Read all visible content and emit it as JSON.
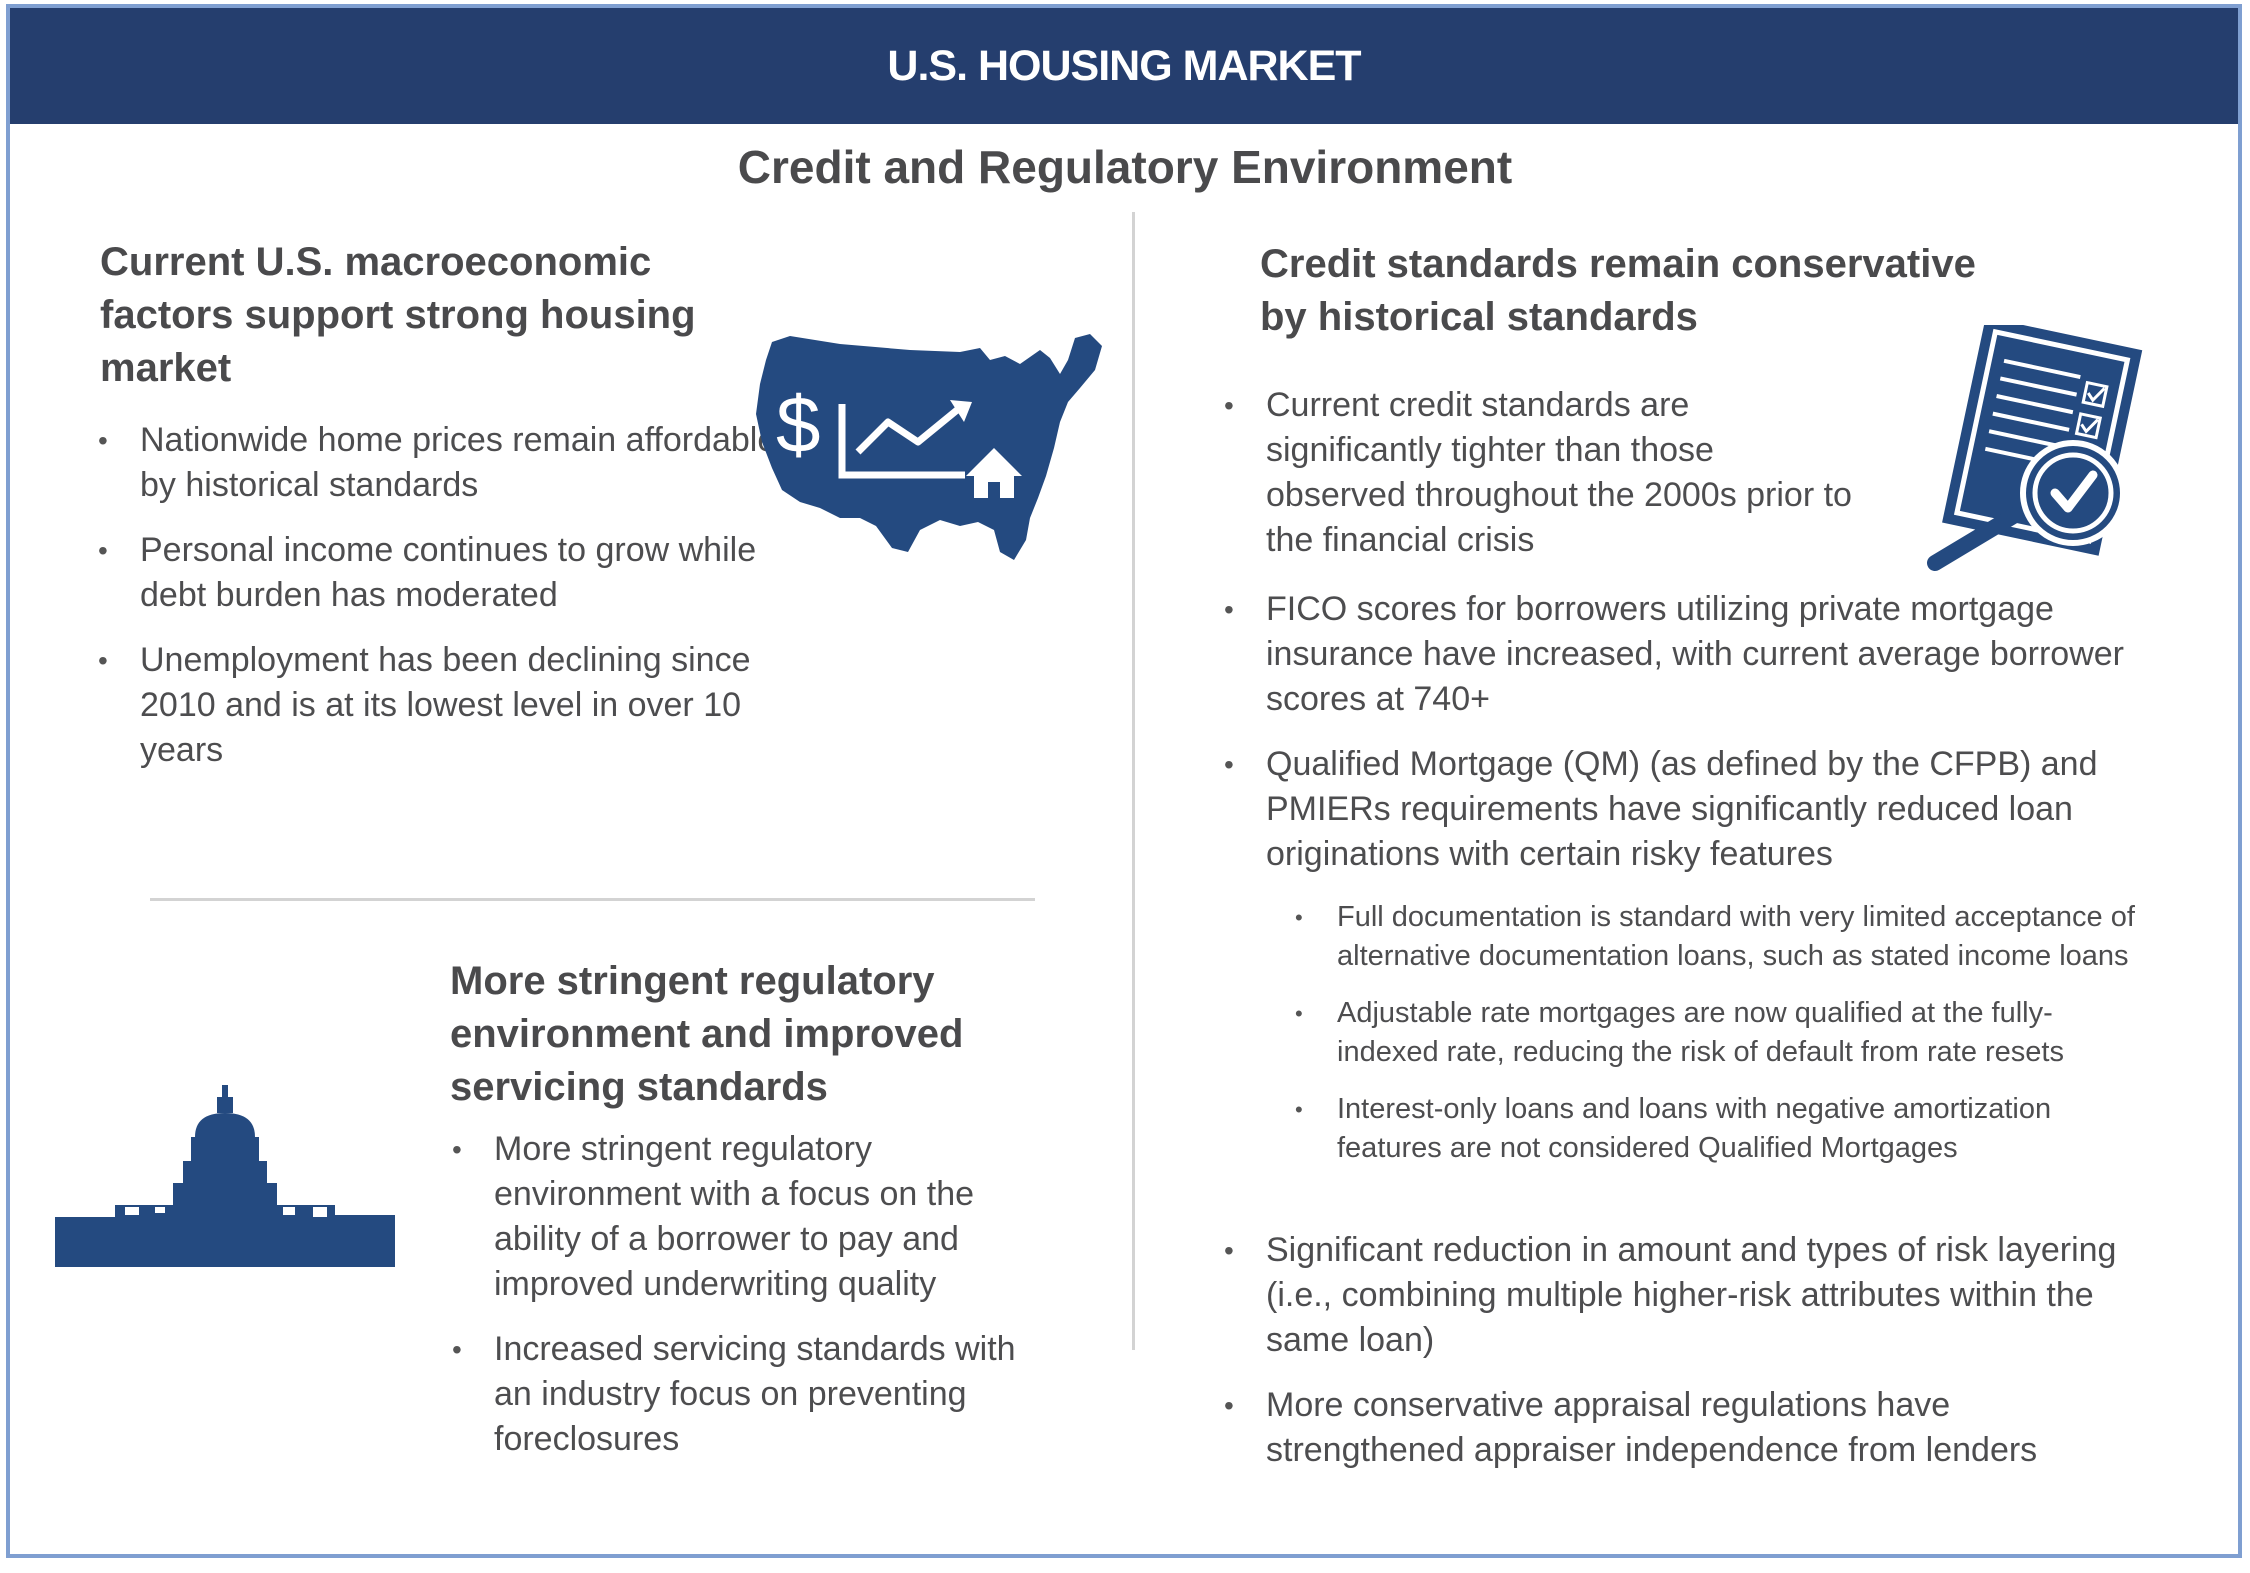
{
  "banner": {
    "title": "U.S. HOUSING MARKET"
  },
  "subtitle": "Credit and Regulatory Environment",
  "left_top": {
    "heading": [
      "Current U.S. macroeconomic",
      "factors support strong housing",
      "market"
    ],
    "bullets": [
      "Nationwide home prices remain affordable by historical standards",
      "Personal income continues to grow while debt burden has moderated",
      "Unemployment has been declining since 2010 and is at its lowest level in over 10 years"
    ],
    "map_icon_symbol": "$"
  },
  "left_bottom": {
    "heading": [
      "More stringent regulatory",
      "environment and improved",
      "servicing standards"
    ],
    "bullets": [
      "More stringent regulatory environment with a focus on the ability of a borrower to pay and improved underwriting quality",
      "Increased servicing standards with an industry focus on preventing foreclosures"
    ]
  },
  "right": {
    "heading": [
      "Credit standards remain conservative",
      "by historical standards"
    ],
    "bullets": [
      "Current credit standards are significantly tighter than those observed throughout the 2000s prior to the financial crisis",
      "FICO scores for borrowers utilizing private mortgage insurance have increased, with current average borrower scores at 740+",
      "Qualified Mortgage (QM) (as defined by the CFPB) and PMIERs requirements have significantly reduced loan originations with certain risky features"
    ],
    "sub_bullets": [
      "Full documentation is standard with very limited acceptance of alternative documentation loans, such as stated income loans",
      "Adjustable rate mortgages are now qualified at the fully-indexed rate, reducing the risk of default from rate resets",
      "Interest-only loans and loans with negative amortization features are not considered Qualified Mortgages"
    ],
    "bullets_after": [
      "Significant reduction in amount and types of risk layering (i.e., combining multiple higher-risk attributes within the same loan)",
      "More conservative appraisal regulations have strengthened appraiser independence from lenders"
    ]
  },
  "colors": {
    "banner": "#253e6e",
    "icon": "#244a80",
    "frame": "#7f9fd1"
  },
  "icons": [
    "us-map-chart-icon",
    "capitol-building-icon",
    "checklist-document-icon"
  ]
}
